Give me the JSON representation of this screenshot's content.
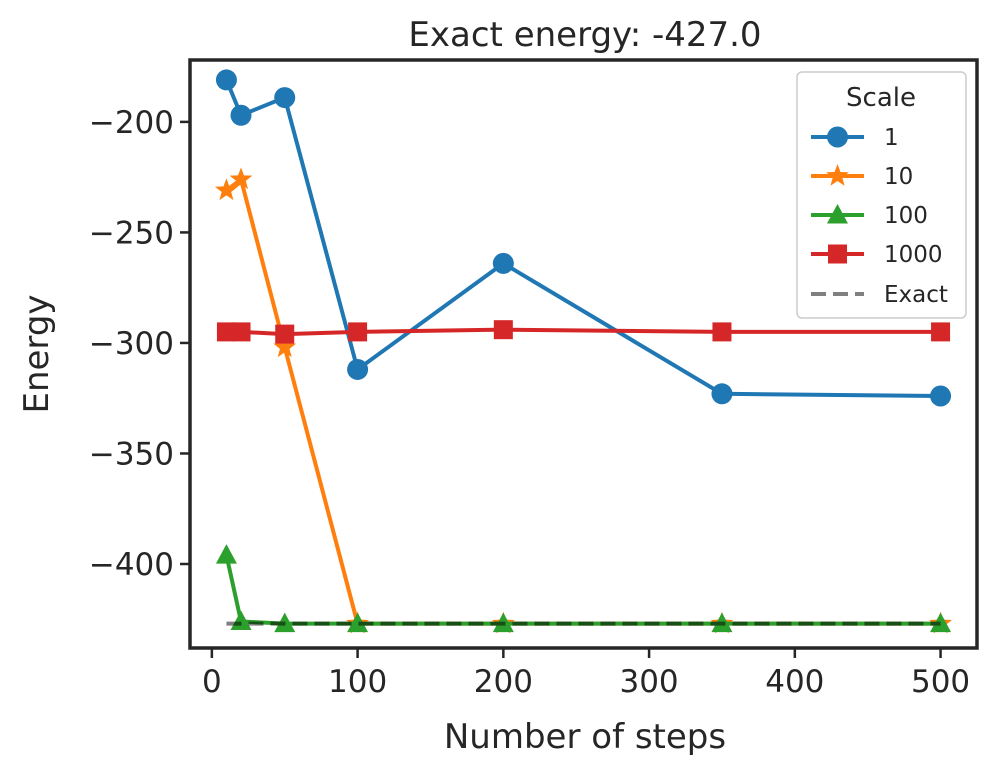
{
  "chart_data": {
    "type": "line",
    "title": "Exact energy: -427.0",
    "xlabel": "Number of steps",
    "ylabel": "Energy",
    "xlim": [
      -15,
      525
    ],
    "ylim": [
      -438,
      -172
    ],
    "xticks": [
      0,
      100,
      200,
      300,
      400,
      500
    ],
    "yticks": [
      -200,
      -250,
      -300,
      -350,
      -400
    ],
    "xtick_labels": [
      "0",
      "100",
      "200",
      "300",
      "400",
      "500"
    ],
    "ytick_labels": [
      "−200",
      "−250",
      "−300",
      "−350",
      "−400"
    ],
    "x": [
      10,
      20,
      50,
      100,
      200,
      350,
      500
    ],
    "series": [
      {
        "name": "1",
        "color": "#1f77b4",
        "marker": "circle",
        "values": [
          -181,
          -197,
          -189,
          -312,
          -264,
          -323,
          -324
        ]
      },
      {
        "name": "10",
        "color": "#ff7f0e",
        "marker": "star",
        "values": [
          -231,
          -226,
          -302,
          -427,
          -427,
          -427,
          -427
        ]
      },
      {
        "name": "100",
        "color": "#2ca02c",
        "marker": "triangle",
        "values": [
          -396,
          -426,
          -427,
          -427,
          -427,
          -427,
          -427
        ]
      },
      {
        "name": "1000",
        "color": "#d62728",
        "marker": "square",
        "values": [
          -295,
          -295,
          -296,
          -295,
          -294,
          -295,
          -295
        ]
      }
    ],
    "reference": {
      "name": "Exact",
      "value": -427.0,
      "color": "#808080",
      "style": "dashed",
      "x_range": [
        10,
        500
      ]
    },
    "legend": {
      "title": "Scale",
      "position": "top-right"
    },
    "grid": false
  }
}
